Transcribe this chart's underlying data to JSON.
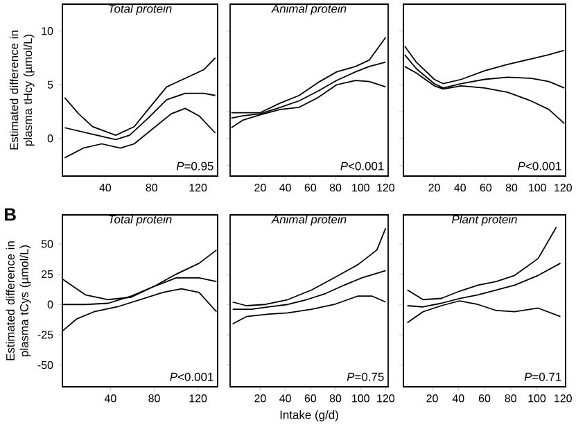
{
  "chart_data": [
    {
      "type": "line",
      "title": "Total protein",
      "ylabel": "Estimated difference in plasma tHcy (µmol/L)",
      "xlim": [
        3,
        137
      ],
      "xticks": [
        40,
        80,
        120
      ],
      "ylim": [
        -3.5,
        12.5
      ],
      "yticks": [
        0,
        5,
        10
      ],
      "annotations": [
        "*P*=0.95"
      ],
      "series": [
        {
          "color": "#000000",
          "x": [
            5,
            29,
            49,
            61,
            77,
            93,
            109,
            125,
            135
          ],
          "values": [
            1.0,
            0.4,
            -0.1,
            0.3,
            1.9,
            3.6,
            4.2,
            4.2,
            4.0
          ]
        },
        {
          "color": "#000000",
          "x": [
            5,
            17,
            29,
            49,
            65,
            77,
            93,
            109,
            125,
            135
          ],
          "values": [
            3.8,
            2.3,
            1.1,
            0.3,
            1.1,
            2.7,
            4.8,
            5.6,
            6.4,
            7.5
          ]
        },
        {
          "color": "#000000",
          "x": [
            5,
            21,
            37,
            53,
            65,
            81,
            97,
            109,
            121,
            135
          ],
          "values": [
            -1.8,
            -0.9,
            -0.5,
            -0.9,
            -0.5,
            0.9,
            2.3,
            2.8,
            2.1,
            0.5
          ]
        }
      ]
    },
    {
      "type": "line",
      "title": "Animal protein",
      "x": [
        -3,
        6,
        20,
        36,
        51,
        66,
        81,
        96,
        107,
        120
      ],
      "xlim": [
        -4,
        122
      ],
      "xticks": [
        20,
        40,
        60,
        80,
        100,
        120
      ],
      "ylim": [
        -3.5,
        12.5
      ],
      "yticks": [
        -2.5,
        0,
        2.5,
        5,
        7.5,
        10
      ],
      "tick_labels": "x",
      "annotations": [
        "*P*<0.001"
      ],
      "series": [
        {
          "color": "#000000",
          "values": [
            1.9,
            2.1,
            2.3,
            2.9,
            3.5,
            4.4,
            5.4,
            6.2,
            6.7,
            7.1
          ]
        },
        {
          "color": "#000000",
          "values": [
            2.4,
            2.4,
            2.4,
            3.3,
            4.0,
            5.2,
            6.2,
            6.7,
            7.3,
            9.4
          ]
        },
        {
          "color": "#000000",
          "values": [
            1.0,
            1.7,
            2.2,
            2.7,
            2.9,
            3.8,
            5.0,
            5.4,
            5.3,
            4.8
          ]
        }
      ]
    },
    {
      "type": "line",
      "x": [
        -3,
        6,
        20,
        27,
        41,
        59,
        77,
        95,
        109,
        121
      ],
      "xlim": [
        -4,
        122
      ],
      "xticks": [
        20,
        40,
        60,
        80,
        100,
        120
      ],
      "ylim": [
        -3.5,
        12.5
      ],
      "yticks": [
        -2.5,
        0,
        2.5,
        5,
        7.5,
        10
      ],
      "tick_labels": "x",
      "annotations": [
        "*P*<0.001"
      ],
      "series": [
        {
          "color": "#000000",
          "values": [
            7.8,
            6.5,
            5.1,
            4.7,
            5.1,
            5.5,
            5.7,
            5.6,
            5.3,
            4.7
          ]
        },
        {
          "color": "#000000",
          "values": [
            8.6,
            7.1,
            5.5,
            5.1,
            5.5,
            6.3,
            6.9,
            7.4,
            7.8,
            8.2
          ]
        },
        {
          "color": "#000000",
          "values": [
            6.7,
            6.1,
            4.9,
            4.6,
            4.9,
            4.7,
            4.3,
            3.5,
            2.7,
            1.4
          ]
        }
      ]
    },
    {
      "type": "line",
      "title": "Total protein",
      "ylabel": "Estimated difference in plasma tCys (µmol/L)",
      "xlim": [
        -4,
        138
      ],
      "xticks": [
        40,
        80,
        120
      ],
      "ylim": [
        -68,
        74
      ],
      "yticks": [
        -50,
        -25,
        0,
        25,
        50
      ],
      "annotations": [
        "*P*<0.001",
        "B"
      ],
      "series": [
        {
          "color": "#000000",
          "x": [
            -4,
            17,
            38,
            59,
            80,
            100,
            121,
            137
          ],
          "values": [
            0,
            0,
            1,
            7,
            15,
            22,
            22,
            19
          ]
        },
        {
          "color": "#000000",
          "x": [
            -4,
            17,
            38,
            59,
            80,
            100,
            121,
            137
          ],
          "values": [
            21,
            8,
            4,
            6,
            15,
            25,
            34,
            45
          ]
        },
        {
          "color": "#000000",
          "x": [
            -4,
            9,
            25,
            46,
            67,
            88,
            105,
            121,
            137
          ],
          "values": [
            -22,
            -12,
            -6,
            -2,
            4,
            10,
            13,
            10,
            -6
          ]
        }
      ]
    },
    {
      "type": "line",
      "title": "Animal protein",
      "xlabel": "Intake (g/d)",
      "xlim": [
        -4,
        122
      ],
      "xticks": [
        20,
        40,
        60,
        80,
        100,
        120
      ],
      "ylim": [
        -68,
        74
      ],
      "yticks": [
        -50,
        -25,
        0,
        25,
        50
      ],
      "tick_labels": "x",
      "annotations": [
        "*P*=0.75"
      ],
      "series": [
        {
          "color": "#000000",
          "x": [
            -2,
            13,
            27,
            42,
            57,
            72,
            87,
            101,
            120
          ],
          "values": [
            -4,
            -4,
            -2,
            0,
            4,
            9,
            16,
            22,
            28
          ]
        },
        {
          "color": "#000000",
          "x": [
            -2,
            9,
            24,
            42,
            61,
            79,
            98,
            113,
            120
          ],
          "values": [
            2,
            -1,
            0,
            4,
            12,
            22,
            33,
            45,
            63
          ]
        },
        {
          "color": "#000000",
          "x": [
            -2,
            9,
            27,
            42,
            61,
            79,
            98,
            109,
            120
          ],
          "values": [
            -16,
            -10,
            -8,
            -7,
            -4,
            0,
            7,
            7,
            2
          ]
        }
      ]
    },
    {
      "type": "line",
      "title": "Plant protein",
      "xlim": [
        -2,
        122
      ],
      "xticks": [
        20,
        40,
        60,
        80,
        100,
        120
      ],
      "ylim": [
        -68,
        74
      ],
      "yticks": [
        -50,
        -25,
        0,
        25,
        50
      ],
      "tick_labels": "x",
      "annotations": [
        "*P*=0.71"
      ],
      "series": [
        {
          "color": "#000000",
          "x": [
            1,
            13,
            27,
            41,
            55,
            69,
            83,
            101,
            118
          ],
          "values": [
            -1,
            -2,
            1,
            5,
            8,
            12,
            16,
            24,
            34
          ]
        },
        {
          "color": "#000000",
          "x": [
            1,
            13,
            27,
            41,
            55,
            69,
            83,
            101,
            115
          ],
          "values": [
            12,
            4,
            5,
            11,
            16,
            19,
            24,
            38,
            64
          ]
        },
        {
          "color": "#000000",
          "x": [
            1,
            13,
            27,
            41,
            55,
            69,
            83,
            101,
            118
          ],
          "values": [
            -15,
            -6,
            -1,
            3,
            0,
            -5,
            -6,
            -3,
            -10
          ]
        }
      ]
    }
  ]
}
